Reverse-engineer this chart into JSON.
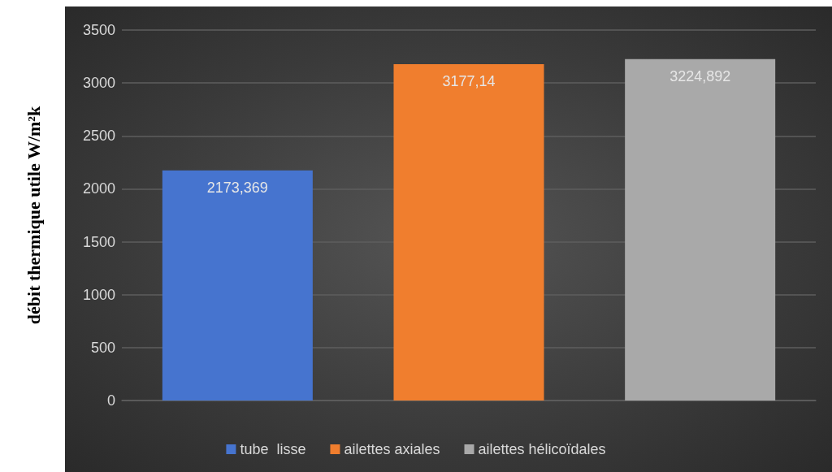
{
  "chart_data": {
    "type": "bar",
    "ylabel": "débit thermique utile W/m²k",
    "categories": [
      null,
      null,
      null
    ],
    "series": [
      {
        "name": "tube  lisse",
        "color": "#4674cf",
        "values": [
          2173.369,
          null,
          null
        ],
        "value_labels": [
          "2173,369",
          null,
          null
        ]
      },
      {
        "name": "ailettes axiales",
        "color": "#f07e2e",
        "values": [
          null,
          3177.14,
          null
        ],
        "value_labels": [
          null,
          "3177,14",
          null
        ]
      },
      {
        "name": "ailettes hélicoïdales",
        "color": "#a9a9a9",
        "values": [
          null,
          null,
          3224.892
        ],
        "value_labels": [
          null,
          null,
          "3224,892"
        ]
      }
    ],
    "ylim": [
      0,
      3500
    ],
    "yticks": [
      0,
      500,
      1000,
      1500,
      2000,
      2500,
      3000,
      3500
    ],
    "grid": "y",
    "legend": "bottom"
  }
}
